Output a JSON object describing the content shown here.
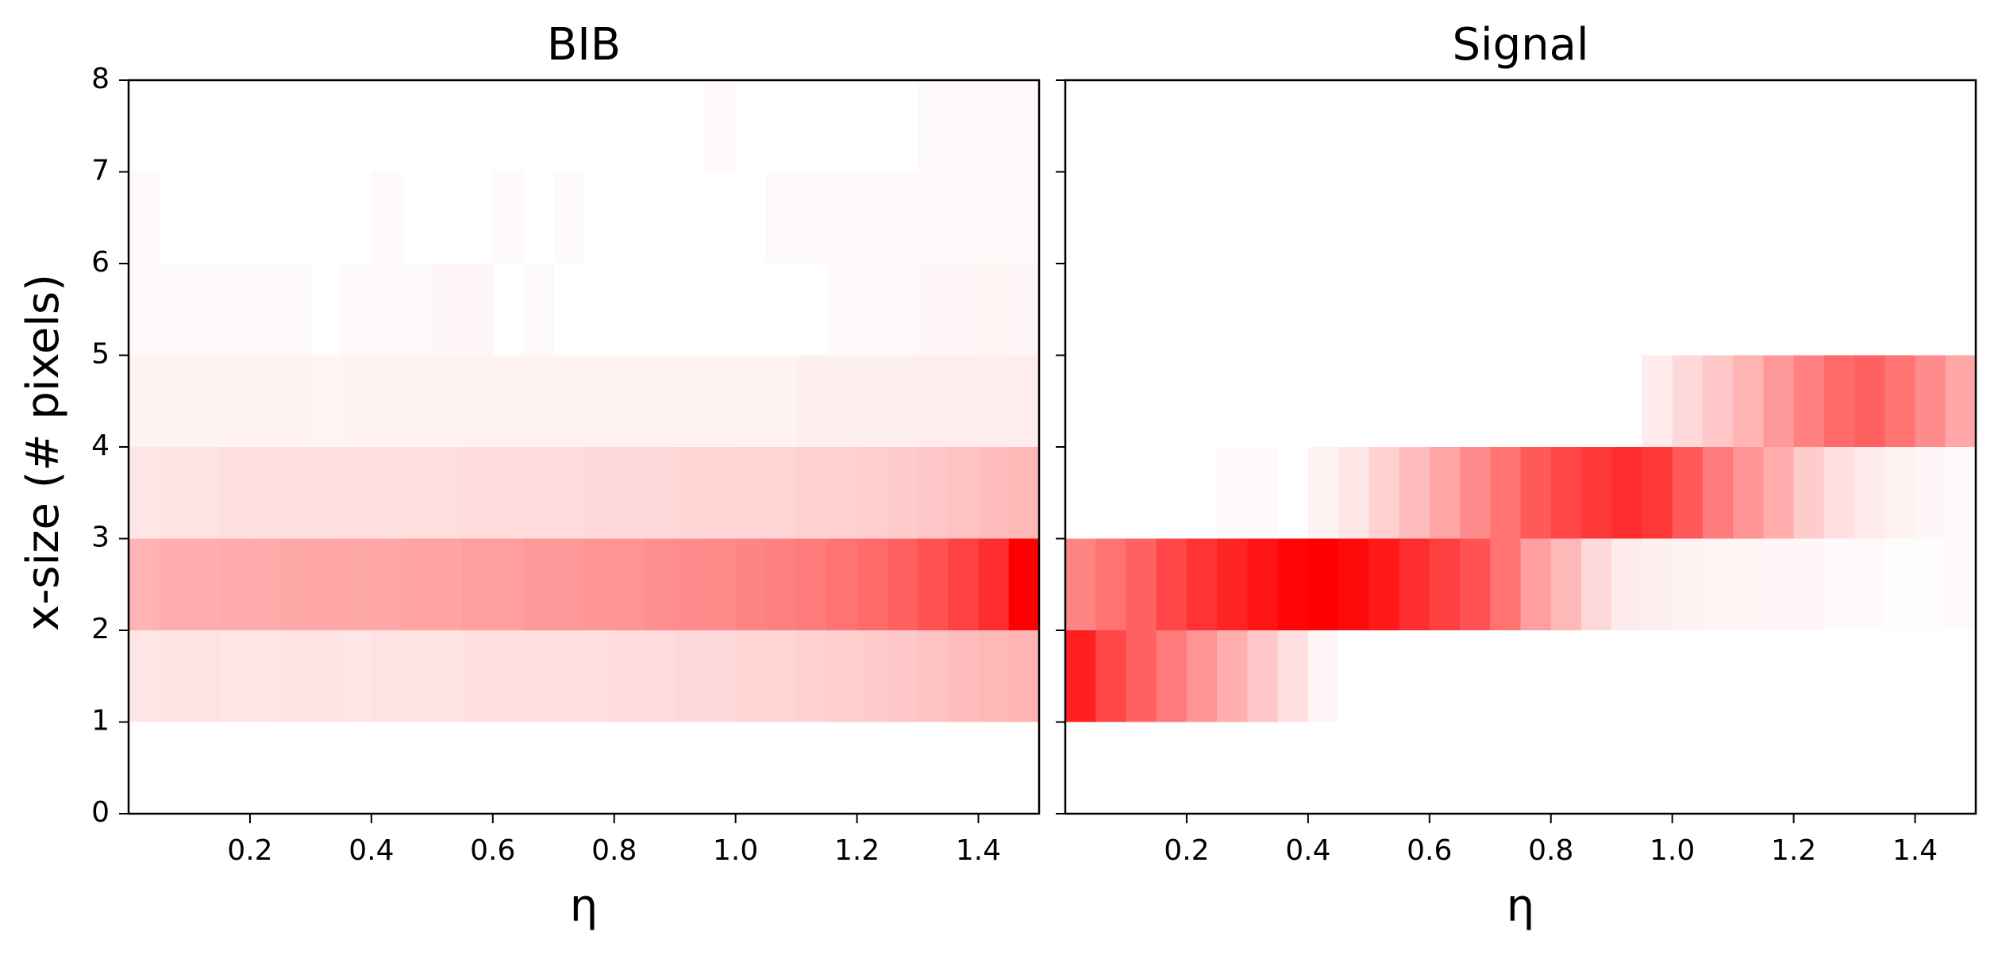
{
  "chart_data": [
    {
      "type": "heatmap",
      "title": "BIB",
      "xlabel": "η",
      "ylabel": "x-size (# pixels)",
      "xlim": [
        0.0,
        1.5
      ],
      "ylim": [
        0,
        8
      ],
      "x_ticks": [
        "0.2",
        "0.4",
        "0.6",
        "0.8",
        "1.0",
        "1.2",
        "1.4"
      ],
      "y_ticks": [
        "0",
        "1",
        "2",
        "3",
        "4",
        "5",
        "6",
        "7",
        "8"
      ],
      "colormap": [
        "#ffffff",
        "#ff0000"
      ],
      "x_bin_width": 0.05,
      "y_bins": [
        1,
        2,
        3,
        4,
        5,
        6,
        7
      ],
      "intensity": [
        [
          0.1,
          0.11,
          0.11,
          0.1,
          0.1,
          0.11,
          0.11,
          0.1,
          0.11,
          0.11,
          0.11,
          0.12,
          0.12,
          0.13,
          0.13,
          0.13,
          0.14,
          0.14,
          0.15,
          0.15,
          0.16,
          0.17,
          0.18,
          0.19,
          0.2,
          0.22,
          0.24,
          0.26,
          0.28,
          0.3
        ],
        [
          0.3,
          0.32,
          0.32,
          0.33,
          0.33,
          0.34,
          0.35,
          0.34,
          0.35,
          0.36,
          0.36,
          0.38,
          0.38,
          0.4,
          0.4,
          0.41,
          0.42,
          0.44,
          0.45,
          0.46,
          0.48,
          0.5,
          0.52,
          0.55,
          0.58,
          0.62,
          0.68,
          0.74,
          0.82,
          1.0
        ],
        [
          0.1,
          0.11,
          0.11,
          0.12,
          0.12,
          0.12,
          0.12,
          0.13,
          0.12,
          0.13,
          0.13,
          0.14,
          0.14,
          0.14,
          0.14,
          0.15,
          0.15,
          0.15,
          0.16,
          0.16,
          0.17,
          0.17,
          0.18,
          0.18,
          0.19,
          0.2,
          0.22,
          0.24,
          0.26,
          0.28
        ],
        [
          0.05,
          0.05,
          0.05,
          0.05,
          0.05,
          0.05,
          0.04,
          0.05,
          0.05,
          0.05,
          0.05,
          0.05,
          0.05,
          0.05,
          0.05,
          0.05,
          0.05,
          0.05,
          0.05,
          0.05,
          0.05,
          0.05,
          0.06,
          0.06,
          0.06,
          0.06,
          0.07,
          0.07,
          0.07,
          0.07
        ],
        [
          0.02,
          0.02,
          0.02,
          0.02,
          0.02,
          0.02,
          0.0,
          0.02,
          0.02,
          0.02,
          0.03,
          0.03,
          0.0,
          0.02,
          0.0,
          0.0,
          0.0,
          0.0,
          0.0,
          0.0,
          0.0,
          0.0,
          0.0,
          0.02,
          0.02,
          0.02,
          0.03,
          0.03,
          0.04,
          0.03
        ],
        [
          0.02,
          0.0,
          0.0,
          0.0,
          0.0,
          0.0,
          0.0,
          0.0,
          0.02,
          0.0,
          0.0,
          0.0,
          0.02,
          0.0,
          0.02,
          0.0,
          0.0,
          0.0,
          0.0,
          0.0,
          0.0,
          0.02,
          0.02,
          0.02,
          0.02,
          0.02,
          0.02,
          0.02,
          0.02,
          0.02
        ],
        [
          0.0,
          0.0,
          0.0,
          0.0,
          0.0,
          0.0,
          0.0,
          0.0,
          0.0,
          0.0,
          0.0,
          0.0,
          0.0,
          0.0,
          0.0,
          0.0,
          0.0,
          0.0,
          0.0,
          0.02,
          0.0,
          0.0,
          0.0,
          0.0,
          0.0,
          0.0,
          0.02,
          0.02,
          0.02,
          0.02
        ]
      ]
    },
    {
      "type": "heatmap",
      "title": "Signal",
      "xlabel": "η",
      "xlim": [
        0.0,
        1.5
      ],
      "ylim": [
        0,
        8
      ],
      "x_ticks": [
        "0.2",
        "0.4",
        "0.6",
        "0.8",
        "1.0",
        "1.2",
        "1.4"
      ],
      "y_ticks": [
        "0",
        "1",
        "2",
        "3",
        "4",
        "5",
        "6",
        "7",
        "8"
      ],
      "colormap": [
        "#ffffff",
        "#ff0000"
      ],
      "x_bin_width": 0.05,
      "y_bins": [
        1,
        2,
        3,
        4,
        5,
        6,
        7
      ],
      "intensity": [
        [
          0.88,
          0.72,
          0.62,
          0.52,
          0.42,
          0.32,
          0.22,
          0.12,
          0.03,
          0.0,
          0.0,
          0.0,
          0.0,
          0.0,
          0.0,
          0.0,
          0.0,
          0.0,
          0.0,
          0.0,
          0.0,
          0.0,
          0.0,
          0.0,
          0.0,
          0.0,
          0.0,
          0.0,
          0.0,
          0.0
        ],
        [
          0.48,
          0.55,
          0.62,
          0.72,
          0.8,
          0.86,
          0.92,
          0.98,
          1.0,
          0.96,
          0.9,
          0.82,
          0.75,
          0.68,
          0.55,
          0.38,
          0.28,
          0.15,
          0.08,
          0.06,
          0.05,
          0.04,
          0.04,
          0.03,
          0.03,
          0.02,
          0.02,
          0.01,
          0.01,
          0.02
        ],
        [
          0.0,
          0.0,
          0.0,
          0.0,
          0.0,
          0.02,
          0.02,
          0.0,
          0.05,
          0.1,
          0.18,
          0.26,
          0.35,
          0.45,
          0.55,
          0.65,
          0.72,
          0.78,
          0.82,
          0.78,
          0.65,
          0.52,
          0.42,
          0.32,
          0.2,
          0.12,
          0.08,
          0.05,
          0.03,
          0.02
        ],
        [
          0.0,
          0.0,
          0.0,
          0.0,
          0.0,
          0.0,
          0.0,
          0.0,
          0.0,
          0.0,
          0.0,
          0.0,
          0.0,
          0.0,
          0.0,
          0.0,
          0.0,
          0.0,
          0.0,
          0.08,
          0.15,
          0.22,
          0.3,
          0.4,
          0.5,
          0.58,
          0.62,
          0.55,
          0.45,
          0.35
        ],
        [
          0.0,
          0.0,
          0.0,
          0.0,
          0.0,
          0.0,
          0.0,
          0.0,
          0.0,
          0.0,
          0.0,
          0.0,
          0.0,
          0.0,
          0.0,
          0.0,
          0.0,
          0.0,
          0.0,
          0.0,
          0.0,
          0.0,
          0.0,
          0.0,
          0.0,
          0.0,
          0.0,
          0.0,
          0.0,
          0.0
        ],
        [
          0.0,
          0.0,
          0.0,
          0.0,
          0.0,
          0.0,
          0.0,
          0.0,
          0.0,
          0.0,
          0.0,
          0.0,
          0.0,
          0.0,
          0.0,
          0.0,
          0.0,
          0.0,
          0.0,
          0.0,
          0.0,
          0.0,
          0.0,
          0.0,
          0.0,
          0.0,
          0.0,
          0.0,
          0.0,
          0.0
        ],
        [
          0.0,
          0.0,
          0.0,
          0.0,
          0.0,
          0.0,
          0.0,
          0.0,
          0.0,
          0.0,
          0.0,
          0.0,
          0.0,
          0.0,
          0.0,
          0.0,
          0.0,
          0.0,
          0.0,
          0.0,
          0.0,
          0.0,
          0.0,
          0.0,
          0.0,
          0.0,
          0.0,
          0.0,
          0.0,
          0.0
        ]
      ]
    }
  ]
}
